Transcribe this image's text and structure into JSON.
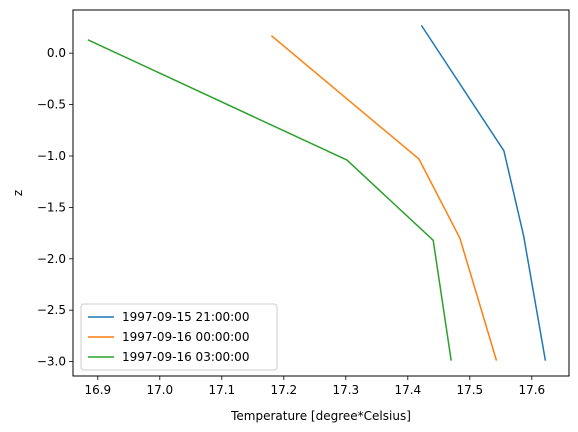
{
  "chart_data": {
    "type": "line",
    "title": "",
    "xlabel": "Temperature [degree*Celsius]",
    "ylabel": "z",
    "xlim": [
      16.86,
      17.66
    ],
    "ylim": [
      -3.14,
      0.42
    ],
    "xticks": [
      16.9,
      17.0,
      17.1,
      17.2,
      17.3,
      17.4,
      17.5,
      17.6
    ],
    "xtick_labels": [
      "16.9",
      "17.0",
      "17.1",
      "17.2",
      "17.3",
      "17.4",
      "17.5",
      "17.6"
    ],
    "yticks": [
      0.0,
      -0.5,
      -1.0,
      -1.5,
      -2.0,
      -2.5,
      -3.0
    ],
    "ytick_labels": [
      "0.0",
      "−0.5",
      "−1.0",
      "−1.5",
      "−2.0",
      "−2.5",
      "−3.0"
    ],
    "grid": false,
    "legend_position": "lower-left",
    "series": [
      {
        "name": "1997-09-15 21:00:00",
        "color": "#1f77b4",
        "x": [
          17.422,
          17.555,
          17.587,
          17.622
        ],
        "y": [
          0.27,
          -0.95,
          -1.78,
          -2.99
        ]
      },
      {
        "name": "1997-09-16 00:00:00",
        "color": "#ff7f0e",
        "x": [
          17.18,
          17.418,
          17.484,
          17.543
        ],
        "y": [
          0.17,
          -1.03,
          -1.8,
          -2.99
        ]
      },
      {
        "name": "1997-09-16 03:00:00",
        "color": "#2ca02c",
        "x": [
          16.884,
          17.302,
          17.441,
          17.47
        ],
        "y": [
          0.13,
          -1.04,
          -1.82,
          -2.99
        ]
      }
    ]
  }
}
